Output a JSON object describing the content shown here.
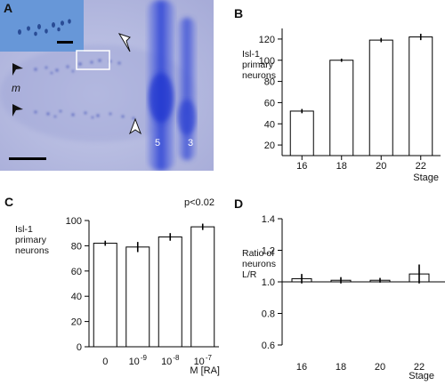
{
  "panels": {
    "a": {
      "letter": "A",
      "labels": {
        "m": "m",
        "num5": "5",
        "num3": "3"
      },
      "colors": {
        "background": "#b4badf",
        "stain": "#3a4fd8",
        "inset": "#5d8fd4"
      }
    },
    "b": {
      "letter": "B"
    },
    "c": {
      "letter": "C"
    },
    "d": {
      "letter": "D"
    }
  },
  "chart_data": [
    {
      "panel": "B",
      "type": "bar",
      "categories": [
        "16",
        "18",
        "20",
        "22"
      ],
      "values": [
        52,
        100,
        119,
        122
      ],
      "errors": [
        2,
        1.5,
        2,
        3
      ],
      "ylabel": [
        "Isl-1",
        "primary",
        "neurons"
      ],
      "xlabel": "Stage",
      "yticks": [
        20,
        40,
        60,
        80,
        100,
        120
      ],
      "ylim": [
        10,
        130
      ],
      "grid": false
    },
    {
      "panel": "C",
      "type": "bar",
      "categories": [
        "0",
        "10-9",
        "10-8",
        "10-7"
      ],
      "category_parts": [
        [
          "0",
          ""
        ],
        [
          "10",
          "-9"
        ],
        [
          "10",
          "-8"
        ],
        [
          "10",
          "-7"
        ]
      ],
      "values": [
        82,
        79,
        87,
        95
      ],
      "errors": [
        2,
        4,
        3,
        2.5
      ],
      "ylabel": [
        "Isl-1",
        "primary",
        "neurons"
      ],
      "xlabel": "M [RA]",
      "annotation": "p<0.02",
      "yticks": [
        0,
        20,
        40,
        60,
        80,
        100
      ],
      "ylim": [
        0,
        100
      ],
      "grid": false
    },
    {
      "panel": "D",
      "type": "bar",
      "categories": [
        "16",
        "18",
        "20",
        "22"
      ],
      "values": [
        1.02,
        1.01,
        1.01,
        1.05
      ],
      "errors": [
        0.03,
        0.02,
        0.015,
        0.06
      ],
      "ylabel": [
        "Ratio of",
        "neurons",
        "L/R"
      ],
      "xlabel": "Stage",
      "yticks": [
        0.6,
        0.8,
        1.0,
        1.2,
        1.4
      ],
      "yticklabels": [
        "0.6",
        "0.8",
        "1.0",
        "1.2",
        "1.4"
      ],
      "ylim": [
        0.6,
        1.4
      ],
      "reference_line": 1.0,
      "grid": false
    }
  ]
}
